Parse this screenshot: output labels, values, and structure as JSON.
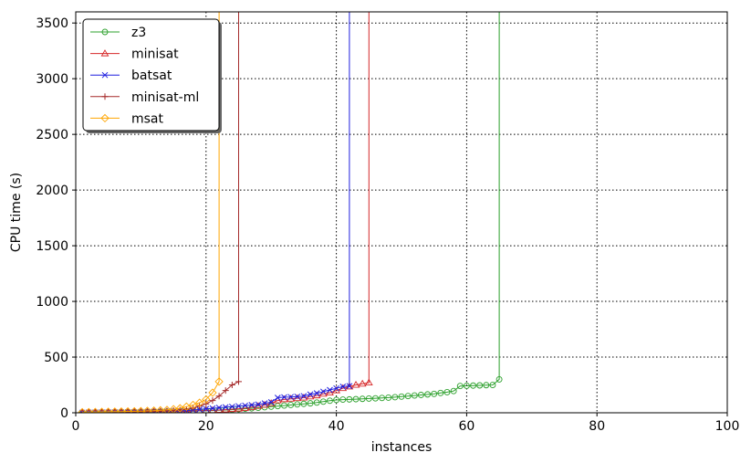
{
  "chart_data": {
    "type": "line",
    "xlabel": "instances",
    "ylabel": "CPU time (s)",
    "xlim": [
      0,
      100
    ],
    "ylim": [
      0,
      3600
    ],
    "xticks": [
      0,
      20,
      40,
      60,
      80,
      100
    ],
    "yticks": [
      0,
      500,
      1000,
      1500,
      2000,
      2500,
      3000,
      3500
    ],
    "grid": true,
    "legend_position": "top-left",
    "series": [
      {
        "name": "z3",
        "color": "#2ca02c",
        "marker": "circle",
        "x": [
          1,
          2,
          3,
          4,
          5,
          6,
          7,
          8,
          9,
          10,
          11,
          12,
          13,
          14,
          15,
          16,
          17,
          18,
          19,
          20,
          21,
          22,
          23,
          24,
          25,
          26,
          27,
          28,
          29,
          30,
          31,
          32,
          33,
          34,
          35,
          36,
          37,
          38,
          39,
          40,
          41,
          42,
          43,
          44,
          45,
          46,
          47,
          48,
          49,
          50,
          51,
          52,
          53,
          54,
          55,
          56,
          57,
          58,
          59,
          60,
          61,
          62,
          63,
          64,
          65,
          65
        ],
        "y": [
          2,
          3,
          3,
          4,
          4,
          5,
          5,
          6,
          7,
          8,
          8,
          9,
          10,
          11,
          12,
          13,
          14,
          15,
          17,
          18,
          20,
          22,
          25,
          28,
          32,
          36,
          40,
          45,
          50,
          55,
          60,
          65,
          70,
          75,
          80,
          85,
          92,
          100,
          108,
          115,
          118,
          120,
          122,
          125,
          128,
          130,
          133,
          136,
          140,
          145,
          150,
          155,
          160,
          165,
          170,
          178,
          185,
          195,
          240,
          242,
          244,
          246,
          248,
          250,
          300,
          3600
        ]
      },
      {
        "name": "minisat",
        "color": "#d62728",
        "marker": "triangle",
        "x": [
          1,
          2,
          3,
          4,
          5,
          6,
          7,
          8,
          9,
          10,
          11,
          12,
          13,
          14,
          15,
          16,
          17,
          18,
          19,
          20,
          21,
          22,
          23,
          24,
          25,
          26,
          27,
          28,
          29,
          30,
          31,
          32,
          33,
          34,
          35,
          36,
          37,
          38,
          39,
          40,
          41,
          42,
          43,
          44,
          45,
          45
        ],
        "y": [
          1,
          2,
          2,
          3,
          3,
          4,
          4,
          5,
          5,
          6,
          7,
          8,
          9,
          10,
          11,
          12,
          14,
          16,
          18,
          20,
          22,
          25,
          28,
          32,
          36,
          42,
          50,
          60,
          70,
          85,
          110,
          120,
          125,
          130,
          135,
          145,
          155,
          170,
          180,
          200,
          220,
          235,
          250,
          260,
          270,
          3600
        ]
      },
      {
        "name": "batsat",
        "color": "#1f1fdf",
        "marker": "x",
        "x": [
          1,
          2,
          3,
          4,
          5,
          6,
          7,
          8,
          9,
          10,
          11,
          12,
          13,
          14,
          15,
          16,
          17,
          18,
          19,
          20,
          21,
          22,
          23,
          24,
          25,
          26,
          27,
          28,
          29,
          30,
          31,
          32,
          33,
          34,
          35,
          36,
          37,
          38,
          39,
          40,
          41,
          42,
          42
        ],
        "y": [
          1,
          2,
          2,
          3,
          3,
          4,
          4,
          5,
          6,
          7,
          8,
          9,
          10,
          12,
          14,
          16,
          20,
          25,
          30,
          35,
          40,
          45,
          50,
          55,
          60,
          65,
          70,
          75,
          85,
          95,
          135,
          140,
          142,
          145,
          150,
          165,
          175,
          190,
          205,
          220,
          235,
          240,
          3600
        ]
      },
      {
        "name": "minisat-ml",
        "color": "#a52a2a",
        "marker": "plus",
        "x": [
          1,
          2,
          3,
          4,
          5,
          6,
          7,
          8,
          9,
          10,
          11,
          12,
          13,
          14,
          15,
          16,
          17,
          18,
          19,
          20,
          21,
          22,
          23,
          24,
          25,
          25
        ],
        "y": [
          1,
          2,
          2,
          3,
          3,
          4,
          5,
          6,
          7,
          8,
          10,
          12,
          14,
          16,
          20,
          25,
          30,
          40,
          60,
          80,
          110,
          150,
          200,
          250,
          280,
          3600
        ]
      },
      {
        "name": "msat",
        "color": "#ffa500",
        "marker": "diamond",
        "x": [
          1,
          2,
          3,
          4,
          5,
          6,
          7,
          8,
          9,
          10,
          11,
          12,
          13,
          14,
          15,
          16,
          17,
          18,
          19,
          20,
          21,
          22,
          22
        ],
        "y": [
          5,
          6,
          7,
          8,
          9,
          10,
          11,
          12,
          13,
          15,
          17,
          19,
          22,
          26,
          32,
          40,
          55,
          70,
          90,
          120,
          180,
          280,
          3600
        ]
      }
    ]
  }
}
